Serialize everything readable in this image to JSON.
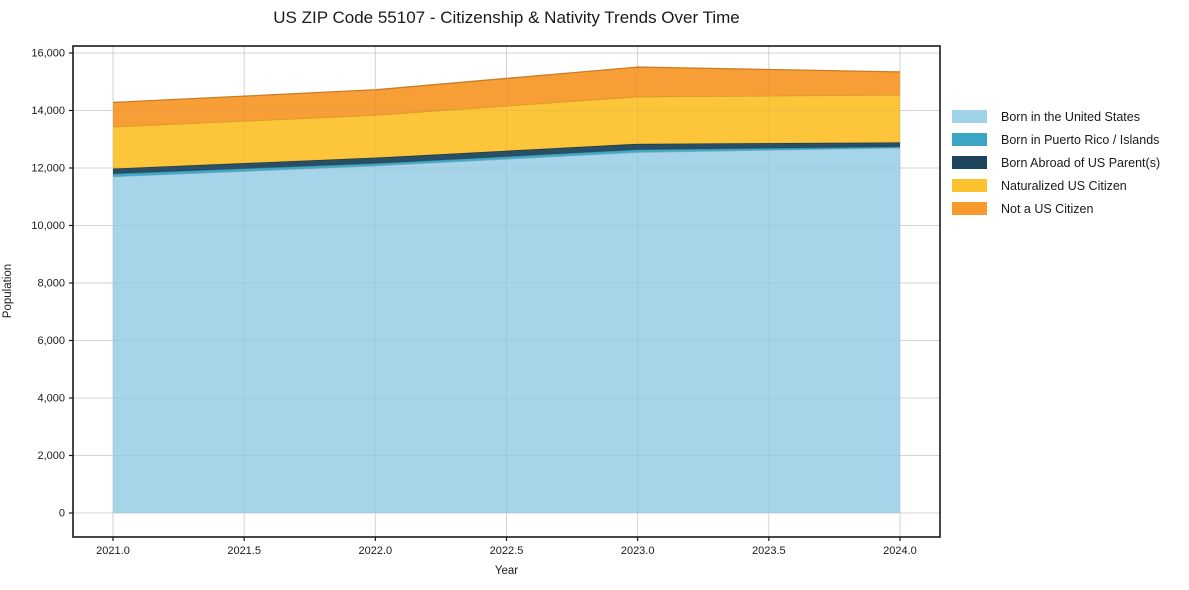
{
  "figure": {
    "background": "#ffffff",
    "spine_color": "#1a1a1a",
    "grid_color": "#dedede",
    "text_color": "#1a1a1a"
  },
  "chart_data": {
    "type": "area",
    "stacked": true,
    "title": "US ZIP Code 55107 - Citizenship & Nativity Trends Over Time",
    "xlabel": "Year",
    "ylabel": "Population",
    "x": [
      2021,
      2022,
      2023,
      2024
    ],
    "series": [
      {
        "name": "Born in the United States",
        "color": "#a1d3e8",
        "values": [
          11700,
          12080,
          12550,
          12700
        ]
      },
      {
        "name": "Born in Puerto Rico / Islands",
        "color": "#3aa6c4",
        "values": [
          100,
          80,
          90,
          40
        ]
      },
      {
        "name": "Born Abroad of US Parent(s)",
        "color": "#1f455c",
        "values": [
          180,
          200,
          200,
          150
        ]
      },
      {
        "name": "Naturalized US Citizen",
        "color": "#fdc32f",
        "values": [
          1450,
          1480,
          1640,
          1650
        ]
      },
      {
        "name": "Not a US Citizen",
        "color": "#f8992c",
        "values": [
          850,
          880,
          1030,
          800
        ]
      }
    ],
    "totals": [
      14280,
      14720,
      15510,
      15340
    ],
    "x_ticks": [
      2021.0,
      2021.5,
      2022.0,
      2022.5,
      2023.0,
      2023.5,
      2024.0
    ],
    "x_tick_labels": [
      "2021.0",
      "2021.5",
      "2022.0",
      "2022.5",
      "2023.0",
      "2023.5",
      "2024.0"
    ],
    "y_ticks": [
      0,
      2000,
      4000,
      6000,
      8000,
      10000,
      12000,
      14000,
      16000
    ],
    "y_tick_labels": [
      "0",
      "2,000",
      "4,000",
      "6,000",
      "8,000",
      "10,000",
      "12,000",
      "14,000",
      "16,000"
    ],
    "xlim": [
      2020.8475,
      2024.1525
    ],
    "ylim": [
      -835,
      16243
    ],
    "grid": true,
    "legend_position": "right-outside"
  }
}
